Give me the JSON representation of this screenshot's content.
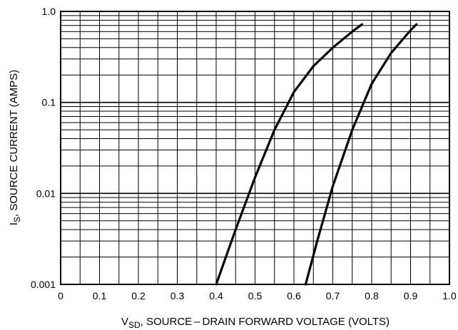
{
  "chart_data": {
    "type": "line",
    "xlabel_main": "V",
    "xlabel_sub": "SD",
    "xlabel_rest": ", SOURCE – DRAIN FORWARD VOLTAGE (VOLTS)",
    "ylabel_main": "I",
    "ylabel_sub": "S",
    "ylabel_rest": ", SOURCE CURRENT (AMPS)",
    "xlim": [
      0,
      1.0
    ],
    "ylim": [
      0.001,
      1.0
    ],
    "yscale": "log",
    "grid": true,
    "x_ticks": [
      "0",
      "0.1",
      "0.2",
      "0.3",
      "0.4",
      "0.5",
      "0.6",
      "0.7",
      "0.8",
      "0.9",
      "1.0"
    ],
    "y_ticks": [
      "1.0",
      "0.1",
      "0.01",
      "0.001"
    ],
    "series": [
      {
        "x": [
          0.4,
          0.45,
          0.5,
          0.55,
          0.6,
          0.65,
          0.7,
          0.75,
          0.775
        ],
        "y": [
          0.001,
          0.004,
          0.015,
          0.05,
          0.13,
          0.25,
          0.4,
          0.6,
          0.72
        ]
      },
      {
        "x": [
          0.63,
          0.66,
          0.7,
          0.75,
          0.8,
          0.85,
          0.9,
          0.915
        ],
        "y": [
          0.001,
          0.003,
          0.012,
          0.05,
          0.16,
          0.35,
          0.62,
          0.72
        ]
      }
    ]
  }
}
